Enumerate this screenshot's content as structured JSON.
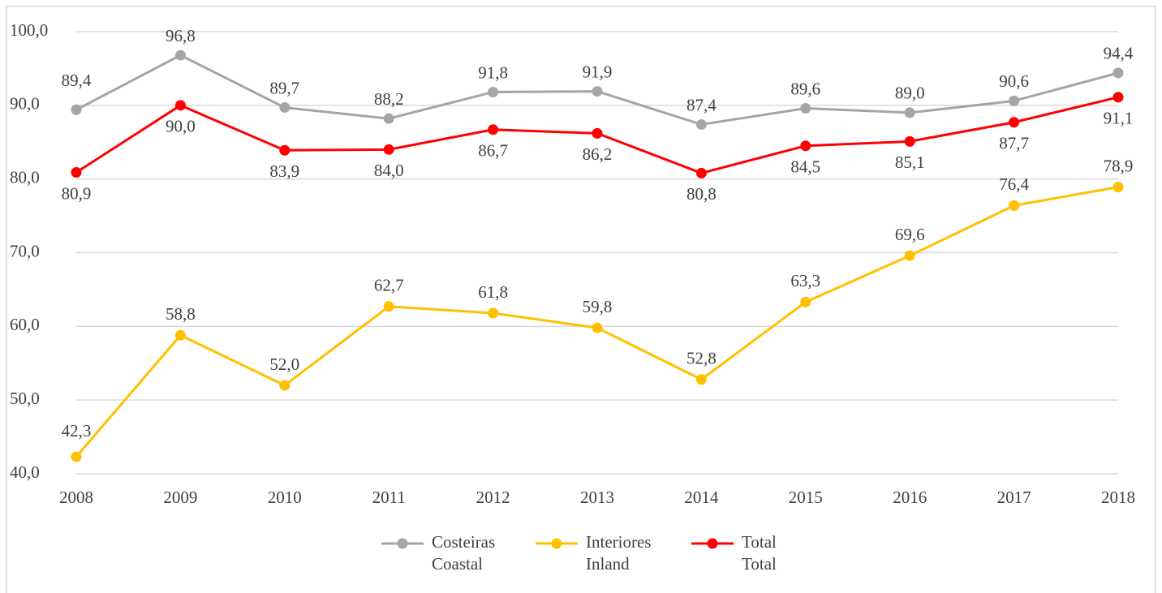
{
  "chart_data": {
    "type": "line",
    "categories": [
      "2008",
      "2009",
      "2010",
      "2011",
      "2012",
      "2013",
      "2014",
      "2015",
      "2016",
      "2017",
      "2018"
    ],
    "series": [
      {
        "name": "Costeiras\nCoastal",
        "color": "#a5a5a5",
        "values": [
          89.4,
          96.8,
          89.7,
          88.2,
          91.8,
          91.9,
          87.4,
          89.6,
          89.0,
          90.6,
          94.4
        ],
        "value_labels": [
          "89,4",
          "96,8",
          "89,7",
          "88,2",
          "91,8",
          "91,9",
          "87,4",
          "89,6",
          "89,0",
          "90,6",
          "94,4"
        ]
      },
      {
        "name": "Interiores\nInland",
        "color": "#ffc000",
        "values": [
          42.3,
          58.8,
          52.0,
          62.7,
          61.8,
          59.8,
          52.8,
          63.3,
          69.6,
          76.4,
          78.9
        ],
        "value_labels": [
          "42,3",
          "58,8",
          "52,0",
          "62,7",
          "61,8",
          "59,8",
          "52,8",
          "63,3",
          "69,6",
          "76,4",
          "78,9"
        ]
      },
      {
        "name": "Total\nTotal",
        "color": "#ff0000",
        "values": [
          80.9,
          90.0,
          83.9,
          84.0,
          86.7,
          86.2,
          80.8,
          84.5,
          85.1,
          87.7,
          91.1
        ],
        "value_labels": [
          "80,9",
          "90,0",
          "83,9",
          "84,0",
          "86,7",
          "86,2",
          "80,8",
          "84,5",
          "85,1",
          "87,7",
          "91,1"
        ]
      }
    ],
    "ylim": [
      40,
      100
    ],
    "yticks": [
      {
        "value": 40,
        "label": "40,0"
      },
      {
        "value": 50,
        "label": "50,0"
      },
      {
        "value": 60,
        "label": "60,0"
      },
      {
        "value": 70,
        "label": "70,0"
      },
      {
        "value": 80,
        "label": "80,0"
      },
      {
        "value": 90,
        "label": "90,0"
      },
      {
        "value": 100,
        "label": "100,0"
      }
    ],
    "grid": true,
    "legend": "bottom"
  }
}
